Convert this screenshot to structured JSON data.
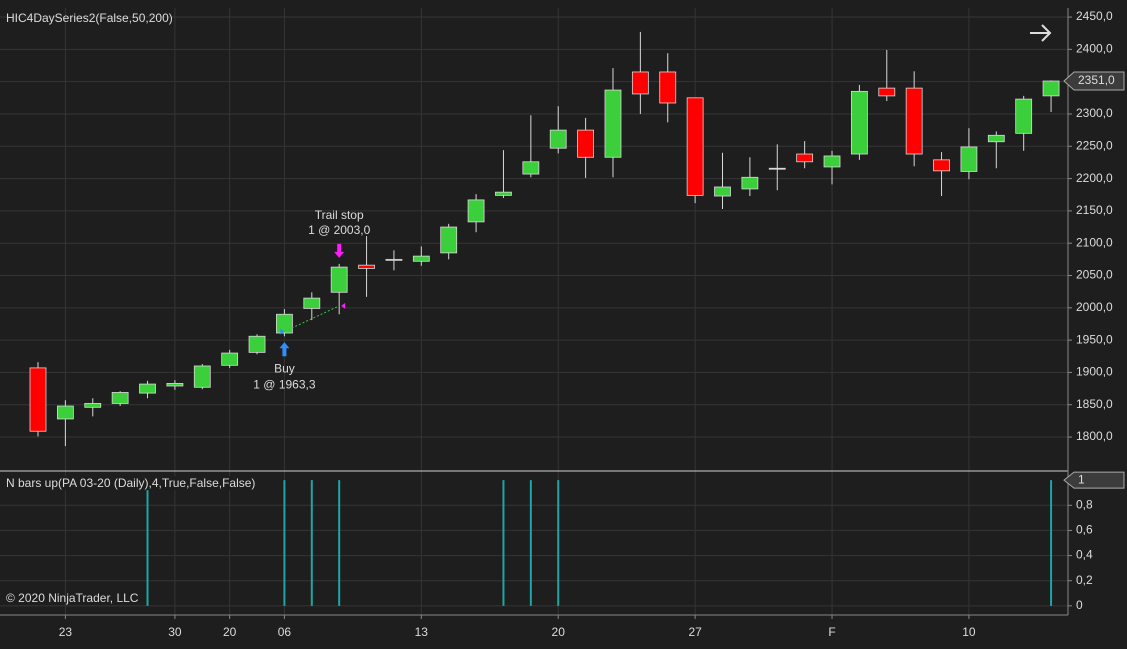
{
  "chart_data": [
    {
      "type": "candlestick",
      "title": "HIC4DaySeries2(False,50,200)",
      "categories": [
        null,
        "23",
        null,
        null,
        null,
        "30",
        null,
        "20",
        null,
        "06",
        null,
        null,
        null,
        null,
        "13",
        null,
        null,
        null,
        null,
        "20",
        null,
        null,
        null,
        null,
        "27",
        null,
        null,
        null,
        null,
        "F",
        null,
        null,
        null,
        null,
        "10",
        null,
        null,
        null
      ],
      "open": [
        1907,
        1828,
        1846,
        1852,
        1868,
        1879,
        1877,
        1911,
        1931,
        1961,
        1999,
        2024,
        2066,
        2074,
        2072,
        2085,
        2133,
        2174,
        2207,
        2247,
        2275,
        2233,
        2365,
        2365,
        2325,
        2173,
        2184,
        2216,
        2238,
        2218,
        2238,
        2340,
        2340,
        2229,
        2211,
        2257,
        2270,
        2328
      ],
      "high": [
        1916,
        1857,
        1860,
        1871,
        1887,
        1888,
        1913,
        1935,
        1959,
        1998,
        2024,
        2068,
        2111,
        2089,
        2095,
        2130,
        2176,
        2244,
        2298,
        2312,
        2294,
        2371,
        2427,
        2394,
        2325,
        2240,
        2233,
        2253,
        2258,
        2243,
        2345,
        2399,
        2366,
        2241,
        2278,
        2273,
        2328,
        2352
      ],
      "low": [
        1801,
        1786,
        1832,
        1848,
        1860,
        1873,
        1874,
        1907,
        1928,
        1956,
        1981,
        1990,
        2017,
        2058,
        2065,
        2075,
        2117,
        2170,
        2202,
        2239,
        2201,
        2202,
        2300,
        2287,
        2162,
        2153,
        2173,
        2182,
        2216,
        2191,
        2229,
        2320,
        2219,
        2173,
        2199,
        2216,
        2243,
        2303
      ],
      "close": [
        1809,
        1848,
        1852,
        1869,
        1882,
        1883,
        1910,
        1930,
        1956,
        1990,
        2015,
        2063,
        2061,
        2075,
        2080,
        2125,
        2167,
        2179,
        2226,
        2275,
        2233,
        2337,
        2331,
        2317,
        2174,
        2187,
        2202,
        2216,
        2226,
        2235,
        2335,
        2328,
        2238,
        2212,
        2249,
        2267,
        2323,
        2351
      ],
      "up_color": "#3ccf3c",
      "down_color": "#ff0000",
      "ylim": [
        1749,
        2464
      ],
      "yticks": [
        {
          "value": 1800,
          "label": "1800,0"
        },
        {
          "value": 1850,
          "label": "1850,0"
        },
        {
          "value": 1900,
          "label": "1900,0"
        },
        {
          "value": 1950,
          "label": "1950,0"
        },
        {
          "value": 2000,
          "label": "2000,0"
        },
        {
          "value": 2050,
          "label": "2050,0"
        },
        {
          "value": 2100,
          "label": "2100,0"
        },
        {
          "value": 2150,
          "label": "2150,0"
        },
        {
          "value": 2200,
          "label": "2200,0"
        },
        {
          "value": 2250,
          "label": "2250,0"
        },
        {
          "value": 2300,
          "label": "2300,0"
        },
        {
          "value": 2350,
          "label": "2350,0"
        },
        {
          "value": 2400,
          "label": "2400,0"
        },
        {
          "value": 2450,
          "label": "2450,0"
        }
      ],
      "grid": true,
      "last_price": {
        "value": 2351,
        "label": "2351,0"
      },
      "trades": [
        {
          "bar": 9,
          "price": 1963.3,
          "label": "Buy",
          "detail": "1 @ 1963,3",
          "color": "#2f8fff"
        },
        {
          "bar": 11,
          "price": 2003,
          "label": "Trail stop",
          "detail": "1 @ 2003,0",
          "color": "#ff1aff"
        }
      ],
      "copyright": "© 2020 NinjaTrader, LLC"
    },
    {
      "type": "bar",
      "title": "N bars up(PA 03-20 (Daily),4,True,False,False)",
      "values": [
        0,
        0,
        0,
        0,
        1,
        0,
        0,
        0,
        0,
        1,
        1,
        1,
        0,
        0,
        0,
        0,
        0,
        1,
        1,
        1,
        0,
        0,
        0,
        0,
        0,
        0,
        0,
        0,
        0,
        0,
        0,
        0,
        0,
        0,
        0,
        0,
        0,
        1
      ],
      "color": "#1fa5a5",
      "ylim": [
        -0.065,
        1.065
      ],
      "yticks": [
        0,
        {
          "value": 0.2,
          "label": "0,2"
        },
        {
          "value": 0.4,
          "label": "0,4"
        },
        {
          "value": 0.6,
          "label": "0,6"
        },
        {
          "value": 0.8,
          "label": "0,8"
        }
      ],
      "grid": true,
      "last_value": 1
    }
  ]
}
